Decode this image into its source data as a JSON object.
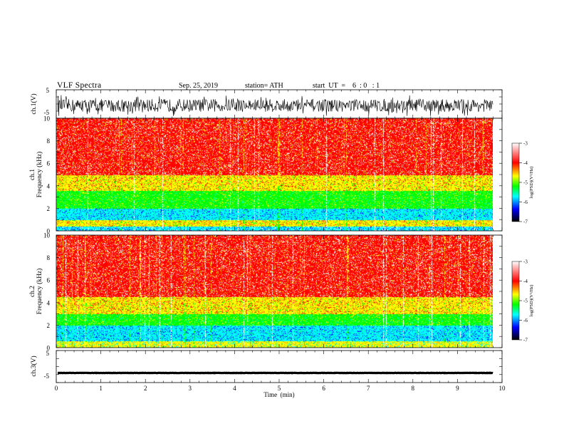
{
  "header": {
    "title": "VLF  Spectra",
    "date": "Sep. 25, 2019",
    "station": "station= ATH",
    "start_ut": "start  UT  =    6  : 0   : 1"
  },
  "colorbar": {
    "label": "log(PSD)(V²/Hz)",
    "ticks": [
      "-3",
      "-4",
      "-5",
      "-6",
      "-7"
    ],
    "values": [
      -3,
      -4,
      -5,
      -6,
      -7
    ],
    "colors": [
      "#ffffff",
      "#ff0000",
      "#ffff00",
      "#00ff00",
      "#00ffff",
      "#0000ff",
      "#000000"
    ]
  },
  "chart_data": [
    {
      "type": "line",
      "name": "ch1-waveform",
      "ylabel": "ch.1(V)",
      "xlim": [
        0,
        10
      ],
      "ylim": [
        -5,
        5
      ],
      "ytick_labels": [
        "5",
        "-5"
      ],
      "signal": {
        "x_end_min": 9.8,
        "mean_v": -0.5,
        "amplitude_v": 2.5
      }
    },
    {
      "type": "heatmap",
      "name": "ch1-spectrogram",
      "ylabel": "Frequency  (kHz)",
      "channel_label": "ch.1",
      "xlim": [
        0,
        10
      ],
      "ylim": [
        0,
        10
      ],
      "ytick_labels": [
        "0",
        "2",
        "4",
        "6",
        "8",
        "10"
      ],
      "x_end_min": 9.8,
      "bands_khz": [
        {
          "from": 0,
          "to": 0.4,
          "dominant": "cyan-blue"
        },
        {
          "from": 0.4,
          "to": 1.0,
          "dominant": "yellow-orange"
        },
        {
          "from": 1.0,
          "to": 2.0,
          "dominant": "cyan"
        },
        {
          "from": 2.0,
          "to": 3.6,
          "dominant": "green"
        },
        {
          "from": 3.6,
          "to": 5.0,
          "dominant": "yellow"
        },
        {
          "from": 5.0,
          "to": 10.0,
          "dominant": "red"
        }
      ]
    },
    {
      "type": "heatmap",
      "name": "ch2-spectrogram",
      "ylabel": "Frequency  (kHz)",
      "channel_label": "ch.2",
      "xlim": [
        0,
        10
      ],
      "ylim": [
        0,
        10
      ],
      "ytick_labels": [
        "0",
        "2",
        "4",
        "6",
        "8",
        "10"
      ],
      "x_end_min": 9.8,
      "bands_khz": [
        {
          "from": 0,
          "to": 0.6,
          "dominant": "yellow-cyan"
        },
        {
          "from": 0.6,
          "to": 2.0,
          "dominant": "cyan"
        },
        {
          "from": 2.0,
          "to": 3.0,
          "dominant": "green"
        },
        {
          "from": 3.0,
          "to": 4.5,
          "dominant": "yellow"
        },
        {
          "from": 4.5,
          "to": 10.0,
          "dominant": "red"
        }
      ]
    },
    {
      "type": "line",
      "name": "ch3-waveform",
      "ylabel": "ch.3(V)",
      "xlabel": "Time  (min)",
      "xlim": [
        0,
        10
      ],
      "ylim": [
        -5,
        5
      ],
      "ytick_labels": [
        "5",
        "-5"
      ],
      "xtick_labels": [
        "0",
        "1",
        "2",
        "3",
        "4",
        "5",
        "6",
        "7",
        "8",
        "9",
        "10"
      ],
      "signal": {
        "x_end_min": 9.8,
        "mean_v": -2.0,
        "amplitude_v": 0.3
      }
    }
  ]
}
